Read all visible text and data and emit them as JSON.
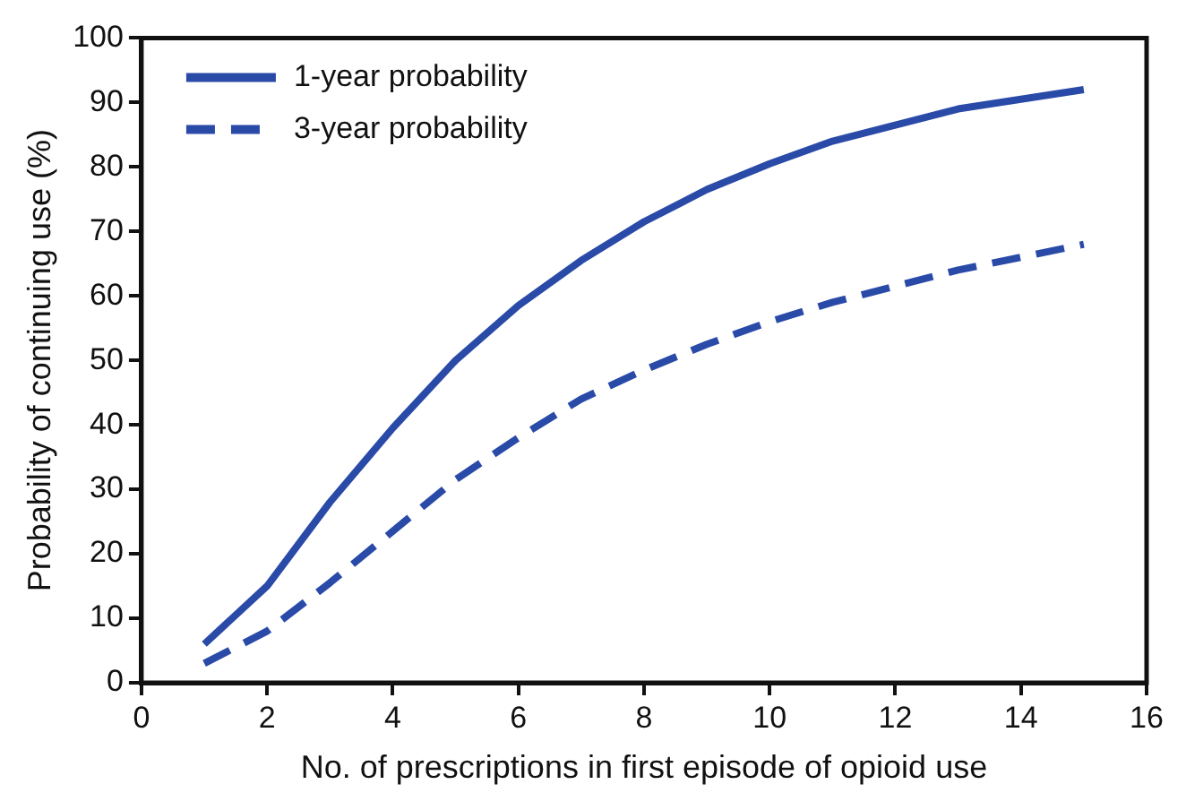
{
  "chart_data": {
    "type": "line",
    "xlabel": "No. of prescriptions in first episode of opioid use",
    "ylabel": "Probability of continuing use (%)",
    "x": [
      1,
      2,
      3,
      4,
      5,
      6,
      7,
      8,
      9,
      10,
      11,
      12,
      13,
      14,
      15
    ],
    "series": [
      {
        "name": "1-year probability",
        "color": "#2a4aa8",
        "line_style": "solid",
        "values": [
          6,
          15,
          28,
          39.5,
          50,
          58.5,
          65.5,
          71.5,
          76.5,
          80.5,
          84,
          86.5,
          89,
          90.5,
          92
        ]
      },
      {
        "name": "3-year probability",
        "color": "#2a4aa8",
        "line_style": "dashed",
        "values": [
          3,
          8,
          15.5,
          23.5,
          31.5,
          38,
          44,
          48.5,
          52.5,
          56,
          59,
          61.5,
          64,
          66,
          68
        ]
      }
    ],
    "xlim": [
      0,
      16
    ],
    "xticks": [
      0,
      2,
      4,
      6,
      8,
      10,
      12,
      14,
      16
    ],
    "ylim": [
      0,
      100
    ],
    "yticks": [
      0,
      10,
      20,
      30,
      40,
      50,
      60,
      70,
      80,
      90,
      100
    ],
    "grid": false,
    "legend": "top left",
    "marker": "none"
  }
}
